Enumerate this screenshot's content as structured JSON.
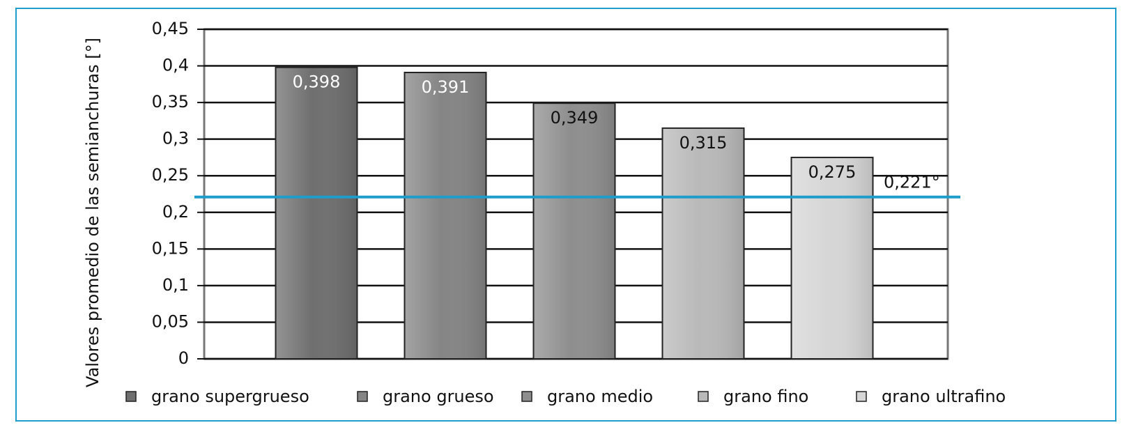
{
  "chart_data": {
    "type": "bar",
    "y_label": "Valores promedio de las semianchuras [°]",
    "categories": [
      "grano supergrueso",
      "grano grueso",
      "grano medio",
      "grano fino",
      "grano ultrafino"
    ],
    "values": [
      0.398,
      0.391,
      0.349,
      0.315,
      0.275
    ],
    "value_labels": [
      "0,398",
      "0,391",
      "0,349",
      "0,315",
      "0,275"
    ],
    "colors": [
      "#6f6f6f",
      "#858585",
      "#8e8e8e",
      "#b9b9b9",
      "#d6d6d6"
    ],
    "ylim": [
      0,
      0.45
    ],
    "yticks": [
      0,
      {
        "value": 0.05,
        "label": "0,05"
      },
      {
        "value": 0.1,
        "label": "0,1"
      },
      {
        "value": 0.15,
        "label": "0,15"
      },
      {
        "value": 0.2,
        "label": "0,2"
      },
      {
        "value": 0.25,
        "label": "0,25"
      },
      {
        "value": 0.3,
        "label": "0,3"
      },
      {
        "value": 0.35,
        "label": "0,35"
      },
      {
        "value": 0.4,
        "label": "0,4"
      },
      {
        "value": 0.45,
        "label": "0,45"
      }
    ],
    "grid": true,
    "reference_line": {
      "value": 0.221,
      "label": "0,221°",
      "color": "#1e9ccc"
    },
    "legend": "bottom"
  }
}
